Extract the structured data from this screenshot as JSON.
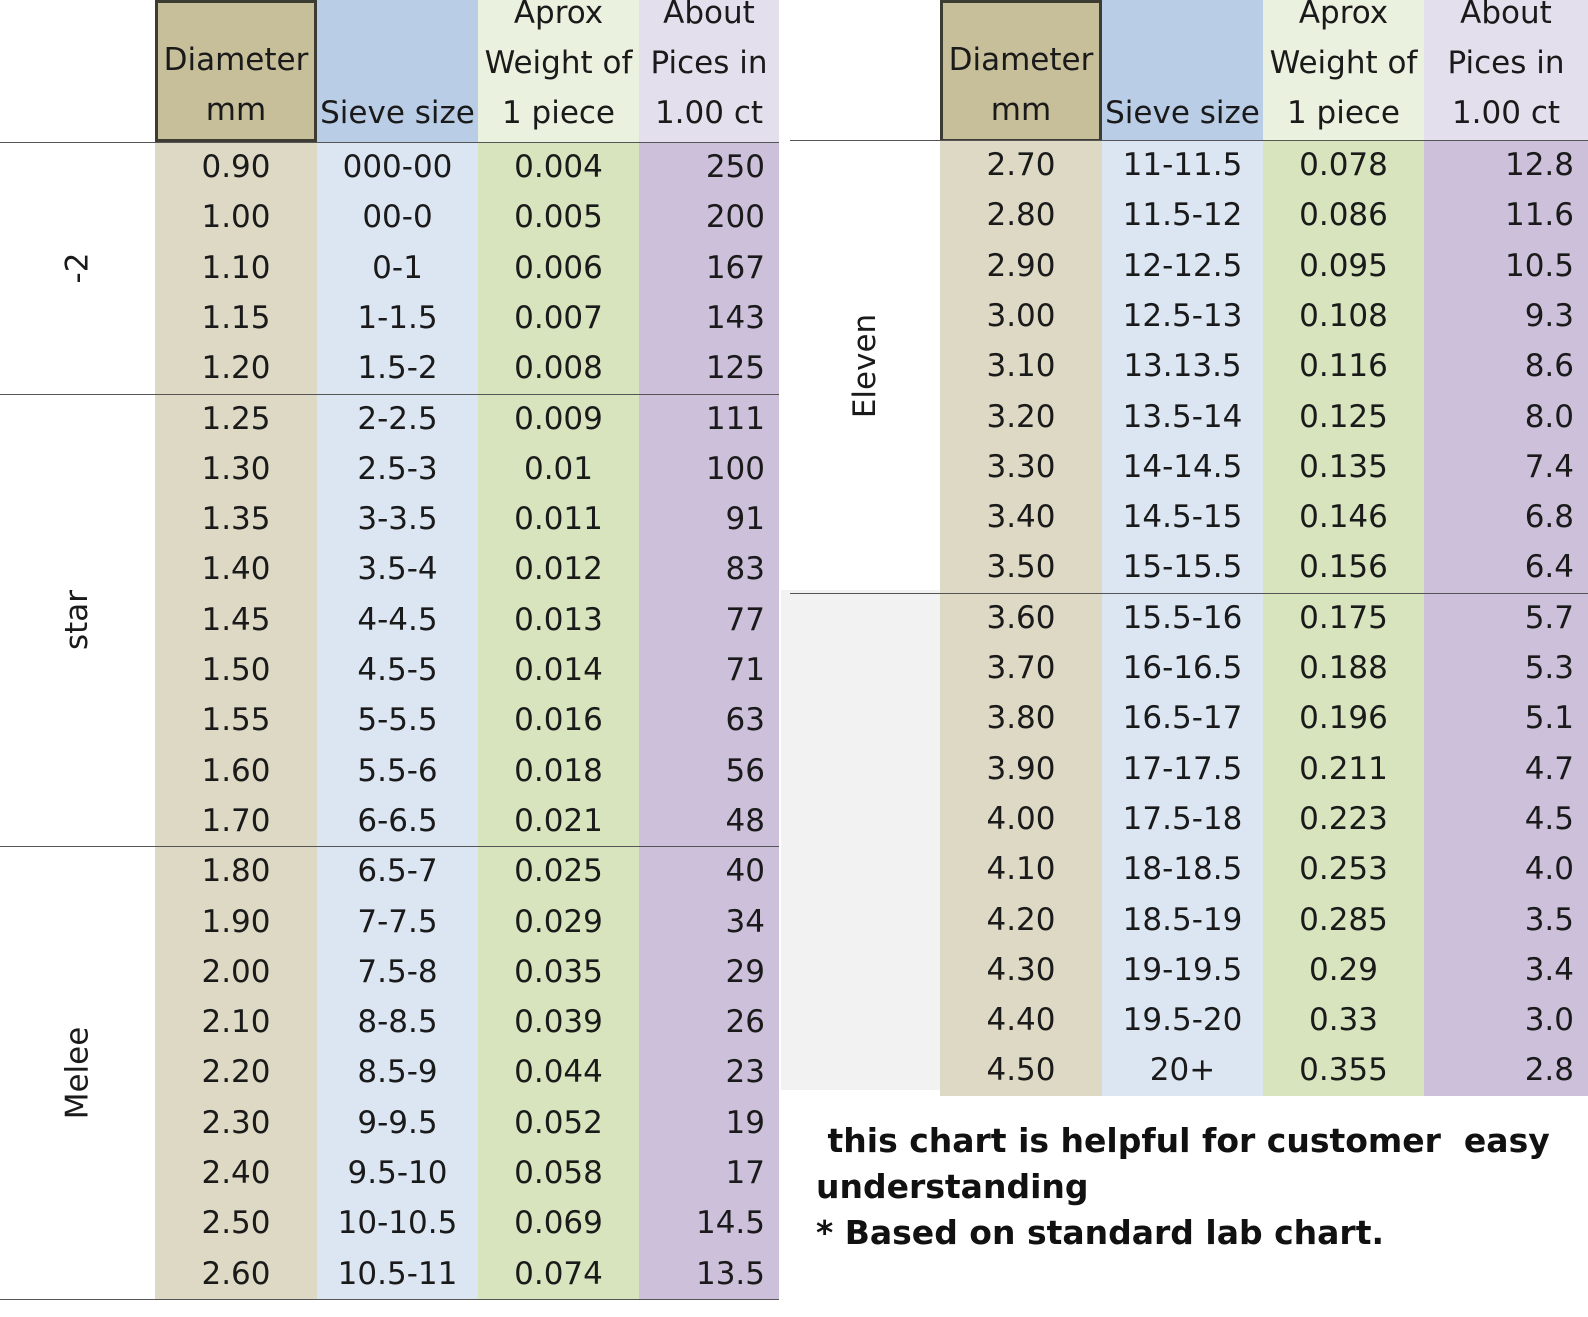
{
  "headers": {
    "diameter": "Diameter\nmm",
    "sieve": "Sieve size",
    "weight": "Aprox\nWeight of\n1 piece",
    "pieces": "About\nPices in\n1.00 ct"
  },
  "left_table": {
    "groups": [
      {
        "label": "-2",
        "start": 0,
        "count": 5
      },
      {
        "label": "star",
        "start": 5,
        "count": 9
      },
      {
        "label": "Melee",
        "start": 14,
        "count": 9
      }
    ],
    "rows": [
      {
        "diameter": "0.90",
        "sieve": "000-00",
        "weight": "0.004",
        "pieces": "250"
      },
      {
        "diameter": "1.00",
        "sieve": "00-0",
        "weight": "0.005",
        "pieces": "200"
      },
      {
        "diameter": "1.10",
        "sieve": "0-1",
        "weight": "0.006",
        "pieces": "167"
      },
      {
        "diameter": "1.15",
        "sieve": "1-1.5",
        "weight": "0.007",
        "pieces": "143"
      },
      {
        "diameter": "1.20",
        "sieve": "1.5-2",
        "weight": "0.008",
        "pieces": "125"
      },
      {
        "diameter": "1.25",
        "sieve": "2-2.5",
        "weight": "0.009",
        "pieces": "111"
      },
      {
        "diameter": "1.30",
        "sieve": "2.5-3",
        "weight": "0.01",
        "pieces": "100"
      },
      {
        "diameter": "1.35",
        "sieve": "3-3.5",
        "weight": "0.011",
        "pieces": "91"
      },
      {
        "diameter": "1.40",
        "sieve": "3.5-4",
        "weight": "0.012",
        "pieces": "83"
      },
      {
        "diameter": "1.45",
        "sieve": "4-4.5",
        "weight": "0.013",
        "pieces": "77"
      },
      {
        "diameter": "1.50",
        "sieve": "4.5-5",
        "weight": "0.014",
        "pieces": "71"
      },
      {
        "diameter": "1.55",
        "sieve": "5-5.5",
        "weight": "0.016",
        "pieces": "63"
      },
      {
        "diameter": "1.60",
        "sieve": "5.5-6",
        "weight": "0.018",
        "pieces": "56"
      },
      {
        "diameter": "1.70",
        "sieve": "6-6.5",
        "weight": "0.021",
        "pieces": "48"
      },
      {
        "diameter": "1.80",
        "sieve": "6.5-7",
        "weight": "0.025",
        "pieces": "40"
      },
      {
        "diameter": "1.90",
        "sieve": "7-7.5",
        "weight": "0.029",
        "pieces": "34"
      },
      {
        "diameter": "2.00",
        "sieve": "7.5-8",
        "weight": "0.035",
        "pieces": "29"
      },
      {
        "diameter": "2.10",
        "sieve": "8-8.5",
        "weight": "0.039",
        "pieces": "26"
      },
      {
        "diameter": "2.20",
        "sieve": "8.5-9",
        "weight": "0.044",
        "pieces": "23"
      },
      {
        "diameter": "2.30",
        "sieve": "9-9.5",
        "weight": "0.052",
        "pieces": "19"
      },
      {
        "diameter": "2.40",
        "sieve": "9.5-10",
        "weight": "0.058",
        "pieces": "17"
      },
      {
        "diameter": "2.50",
        "sieve": "10-10.5",
        "weight": "0.069",
        "pieces": "14.5"
      },
      {
        "diameter": "2.60",
        "sieve": "10.5-11",
        "weight": "0.074",
        "pieces": "13.5"
      }
    ]
  },
  "right_table": {
    "groups": [
      {
        "label": "Eleven",
        "start": 0,
        "count": 9
      }
    ],
    "rows": [
      {
        "diameter": "2.70",
        "sieve": "11-11.5",
        "weight": "0.078",
        "pieces": "12.8"
      },
      {
        "diameter": "2.80",
        "sieve": "11.5-12",
        "weight": "0.086",
        "pieces": "11.6"
      },
      {
        "diameter": "2.90",
        "sieve": "12-12.5",
        "weight": "0.095",
        "pieces": "10.5"
      },
      {
        "diameter": "3.00",
        "sieve": "12.5-13",
        "weight": "0.108",
        "pieces": "9.3"
      },
      {
        "diameter": "3.10",
        "sieve": "13.13.5",
        "weight": "0.116",
        "pieces": "8.6"
      },
      {
        "diameter": "3.20",
        "sieve": "13.5-14",
        "weight": "0.125",
        "pieces": "8.0"
      },
      {
        "diameter": "3.30",
        "sieve": "14-14.5",
        "weight": "0.135",
        "pieces": "7.4"
      },
      {
        "diameter": "3.40",
        "sieve": "14.5-15",
        "weight": "0.146",
        "pieces": "6.8"
      },
      {
        "diameter": "3.50",
        "sieve": "15-15.5",
        "weight": "0.156",
        "pieces": "6.4"
      },
      {
        "diameter": "3.60",
        "sieve": "15.5-16",
        "weight": "0.175",
        "pieces": "5.7"
      },
      {
        "diameter": "3.70",
        "sieve": "16-16.5",
        "weight": "0.188",
        "pieces": "5.3"
      },
      {
        "diameter": "3.80",
        "sieve": "16.5-17",
        "weight": "0.196",
        "pieces": "5.1"
      },
      {
        "diameter": "3.90",
        "sieve": "17-17.5",
        "weight": "0.211",
        "pieces": "4.7"
      },
      {
        "diameter": "4.00",
        "sieve": "17.5-18",
        "weight": "0.223",
        "pieces": "4.5"
      },
      {
        "diameter": "4.10",
        "sieve": "18-18.5",
        "weight": "0.253",
        "pieces": "4.0"
      },
      {
        "diameter": "4.20",
        "sieve": "18.5-19",
        "weight": "0.285",
        "pieces": "3.5"
      },
      {
        "diameter": "4.30",
        "sieve": "19-19.5",
        "weight": "0.29",
        "pieces": "3.4"
      },
      {
        "diameter": "4.40",
        "sieve": "19.5-20",
        "weight": "0.33",
        "pieces": "3.0"
      },
      {
        "diameter": "4.50",
        "sieve": "20+",
        "weight": "0.355",
        "pieces": "2.8"
      }
    ]
  },
  "notes": {
    "line1": " this chart is helpful for customer  easy understanding",
    "line2": "* Based on standard lab chart."
  },
  "colors": {
    "diameter_header": "#c6bf99",
    "diameter_body": "#ddd9c4",
    "sieve_header": "#b9cde6",
    "sieve_body": "#dce6f2",
    "weight_header": "#eaf1de",
    "weight_body": "#d7e4bd",
    "pieces_header": "#e4dfec",
    "pieces_body": "#ccc0da"
  }
}
